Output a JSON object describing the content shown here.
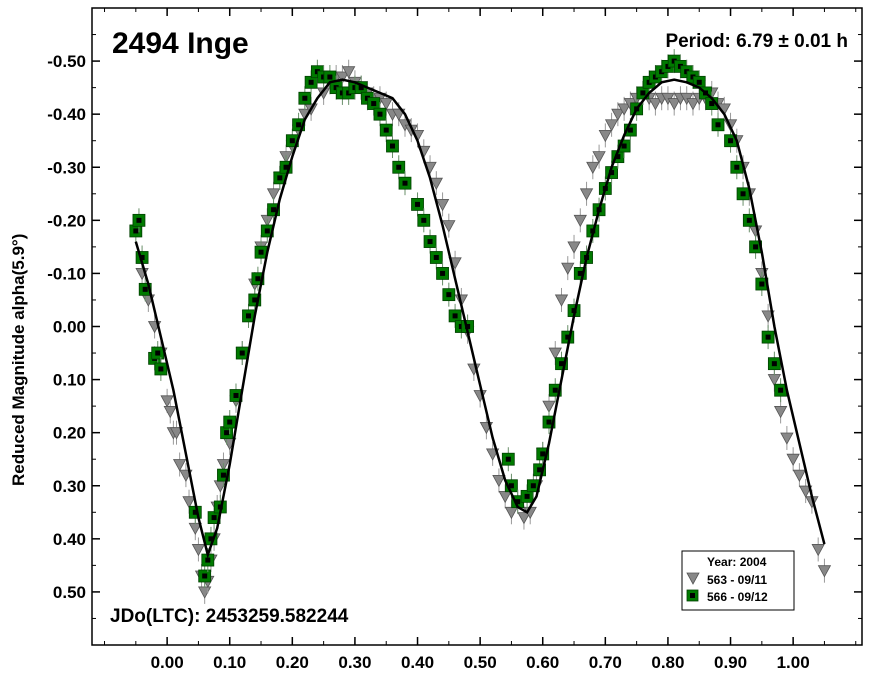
{
  "chart_data": {
    "type": "scatter",
    "title": "2494 Inge",
    "period_label": "Period: 6.79 ± 0.01 h",
    "jdo_label": "JDo(LTC): 2453259.582244",
    "ylabel": "Reduced Magnitude alpha(5.9°)",
    "xlabel": "",
    "xlim": [
      -0.12,
      1.11
    ],
    "ylim": [
      0.6,
      -0.6
    ],
    "x_ticks": [
      "0.00",
      "0.10",
      "0.20",
      "0.30",
      "0.40",
      "0.50",
      "0.60",
      "0.70",
      "0.80",
      "0.90",
      "1.00"
    ],
    "x_tick_values": [
      0.0,
      0.1,
      0.2,
      0.3,
      0.4,
      0.5,
      0.6,
      0.7,
      0.8,
      0.9,
      1.0
    ],
    "y_ticks": [
      "-0.50",
      "-0.40",
      "-0.30",
      "-0.20",
      "-0.10",
      "0.00",
      "0.10",
      "0.20",
      "0.30",
      "0.40",
      "0.50"
    ],
    "y_tick_values": [
      -0.5,
      -0.4,
      -0.3,
      -0.2,
      -0.1,
      0.0,
      0.1,
      0.2,
      0.3,
      0.4,
      0.5
    ],
    "legend": {
      "title": "Year: 2004",
      "placement": "bottom-right",
      "entries": [
        {
          "label": "563 - 09/11",
          "marker": "gray-triangle"
        },
        {
          "label": "566 - 09/12",
          "marker": "green-square"
        }
      ]
    },
    "colors": {
      "green": "#007a00",
      "gray": "#888888",
      "curve": "#000000"
    },
    "fit_curve": {
      "x": [
        -0.05,
        -0.03,
        -0.01,
        0.01,
        0.03,
        0.05,
        0.065,
        0.08,
        0.1,
        0.12,
        0.14,
        0.16,
        0.18,
        0.2,
        0.22,
        0.24,
        0.26,
        0.28,
        0.3,
        0.32,
        0.34,
        0.36,
        0.38,
        0.4,
        0.42,
        0.44,
        0.46,
        0.48,
        0.5,
        0.52,
        0.54,
        0.56,
        0.575,
        0.59,
        0.61,
        0.63,
        0.65,
        0.67,
        0.69,
        0.71,
        0.73,
        0.75,
        0.77,
        0.79,
        0.81,
        0.83,
        0.85,
        0.87,
        0.89,
        0.91,
        0.93,
        0.95,
        0.97,
        0.99,
        1.01,
        1.03,
        1.05
      ],
      "y": [
        -0.16,
        -0.08,
        0.02,
        0.12,
        0.24,
        0.36,
        0.43,
        0.38,
        0.26,
        0.12,
        -0.02,
        -0.14,
        -0.24,
        -0.32,
        -0.39,
        -0.43,
        -0.46,
        -0.465,
        -0.46,
        -0.45,
        -0.44,
        -0.43,
        -0.4,
        -0.35,
        -0.28,
        -0.19,
        -0.09,
        0.01,
        0.11,
        0.21,
        0.29,
        0.34,
        0.35,
        0.32,
        0.22,
        0.1,
        -0.02,
        -0.13,
        -0.22,
        -0.3,
        -0.36,
        -0.41,
        -0.44,
        -0.46,
        -0.465,
        -0.46,
        -0.45,
        -0.43,
        -0.4,
        -0.35,
        -0.26,
        -0.14,
        0.0,
        0.12,
        0.22,
        0.32,
        0.41
      ]
    },
    "series": [
      {
        "name": "563 - 09/11",
        "marker": "triangle",
        "x": [
          -0.04,
          -0.03,
          -0.02,
          -0.01,
          0.0,
          0.005,
          0.01,
          0.015,
          0.02,
          0.03,
          0.035,
          0.045,
          0.05,
          0.055,
          0.06,
          0.065,
          0.07,
          0.075,
          0.08,
          0.085,
          0.09,
          0.1,
          0.11,
          0.12,
          0.13,
          0.14,
          0.15,
          0.16,
          0.17,
          0.18,
          0.19,
          0.2,
          0.21,
          0.22,
          0.23,
          0.25,
          0.26,
          0.27,
          0.28,
          0.29,
          0.3,
          0.31,
          0.32,
          0.33,
          0.34,
          0.35,
          0.36,
          0.37,
          0.38,
          0.39,
          0.4,
          0.41,
          0.42,
          0.43,
          0.44,
          0.45,
          0.46,
          0.47,
          0.48,
          0.49,
          0.5,
          0.51,
          0.52,
          0.53,
          0.54,
          0.55,
          0.56,
          0.57,
          0.58,
          0.59,
          0.6,
          0.61,
          0.62,
          0.63,
          0.64,
          0.65,
          0.66,
          0.67,
          0.68,
          0.69,
          0.7,
          0.71,
          0.72,
          0.73,
          0.74,
          0.75,
          0.76,
          0.77,
          0.78,
          0.79,
          0.8,
          0.81,
          0.82,
          0.83,
          0.84,
          0.85,
          0.86,
          0.87,
          0.88,
          0.89,
          0.9,
          0.91,
          0.92,
          0.93,
          0.94,
          0.95,
          0.96,
          0.97,
          0.98,
          0.99,
          1.0,
          1.01,
          1.02,
          1.03,
          1.04,
          1.05
        ],
        "y": [
          -0.1,
          -0.05,
          0.0,
          0.05,
          0.14,
          0.16,
          0.2,
          0.2,
          0.26,
          0.28,
          0.33,
          0.38,
          0.42,
          0.47,
          0.5,
          0.48,
          0.44,
          0.4,
          0.34,
          0.3,
          0.26,
          0.22,
          0.14,
          0.05,
          -0.02,
          -0.08,
          -0.15,
          -0.2,
          -0.25,
          -0.28,
          -0.32,
          -0.34,
          -0.37,
          -0.4,
          -0.41,
          -0.44,
          -0.46,
          -0.47,
          -0.47,
          -0.48,
          -0.46,
          -0.45,
          -0.44,
          -0.43,
          -0.43,
          -0.42,
          -0.4,
          -0.4,
          -0.38,
          -0.37,
          -0.36,
          -0.33,
          -0.3,
          -0.27,
          -0.23,
          -0.19,
          -0.12,
          -0.05,
          0.01,
          0.08,
          0.13,
          0.19,
          0.24,
          0.29,
          0.32,
          0.35,
          0.33,
          0.36,
          0.35,
          0.3,
          0.24,
          0.15,
          0.05,
          -0.05,
          -0.11,
          -0.15,
          -0.2,
          -0.25,
          -0.3,
          -0.32,
          -0.36,
          -0.38,
          -0.4,
          -0.41,
          -0.42,
          -0.43,
          -0.44,
          -0.43,
          -0.42,
          -0.43,
          -0.43,
          -0.42,
          -0.43,
          -0.43,
          -0.42,
          -0.43,
          -0.43,
          -0.44,
          -0.42,
          -0.41,
          -0.38,
          -0.35,
          -0.3,
          -0.25,
          -0.18,
          -0.1,
          -0.02,
          0.1,
          0.16,
          0.21,
          0.25,
          0.28,
          0.31,
          0.33,
          0.42,
          0.46
        ]
      },
      {
        "name": "566 - 09/12",
        "marker": "square",
        "x": [
          -0.05,
          -0.045,
          -0.04,
          -0.035,
          -0.02,
          -0.015,
          -0.01,
          0.045,
          0.06,
          0.065,
          0.07,
          0.075,
          0.085,
          0.09,
          0.095,
          0.1,
          0.11,
          0.12,
          0.13,
          0.14,
          0.145,
          0.15,
          0.16,
          0.17,
          0.18,
          0.19,
          0.2,
          0.21,
          0.22,
          0.23,
          0.24,
          0.25,
          0.26,
          0.27,
          0.28,
          0.29,
          0.3,
          0.31,
          0.32,
          0.33,
          0.34,
          0.35,
          0.36,
          0.37,
          0.38,
          0.4,
          0.41,
          0.42,
          0.43,
          0.44,
          0.45,
          0.46,
          0.47,
          0.48,
          0.545,
          0.55,
          0.56,
          0.575,
          0.585,
          0.595,
          0.6,
          0.61,
          0.62,
          0.63,
          0.64,
          0.65,
          0.66,
          0.67,
          0.68,
          0.69,
          0.7,
          0.71,
          0.72,
          0.73,
          0.74,
          0.75,
          0.76,
          0.77,
          0.78,
          0.79,
          0.8,
          0.81,
          0.82,
          0.83,
          0.84,
          0.85,
          0.86,
          0.87,
          0.88,
          0.9,
          0.91,
          0.92,
          0.93,
          0.94,
          0.95,
          0.96,
          0.97,
          0.98
        ],
        "y": [
          -0.18,
          -0.2,
          -0.13,
          -0.07,
          0.06,
          0.05,
          0.08,
          0.35,
          0.47,
          0.44,
          0.4,
          0.36,
          0.34,
          0.28,
          0.2,
          0.18,
          0.13,
          0.05,
          -0.02,
          -0.05,
          -0.09,
          -0.14,
          -0.18,
          -0.22,
          -0.28,
          -0.3,
          -0.35,
          -0.38,
          -0.43,
          -0.46,
          -0.48,
          -0.47,
          -0.47,
          -0.45,
          -0.44,
          -0.44,
          -0.45,
          -0.45,
          -0.43,
          -0.42,
          -0.4,
          -0.37,
          -0.34,
          -0.3,
          -0.27,
          -0.23,
          -0.2,
          -0.16,
          -0.13,
          -0.1,
          -0.06,
          -0.02,
          0.0,
          0.0,
          0.25,
          0.3,
          0.33,
          0.32,
          0.3,
          0.27,
          0.24,
          0.18,
          0.12,
          0.07,
          0.02,
          -0.03,
          -0.1,
          -0.13,
          -0.18,
          -0.22,
          -0.26,
          -0.29,
          -0.32,
          -0.34,
          -0.37,
          -0.41,
          -0.44,
          -0.46,
          -0.47,
          -0.48,
          -0.49,
          -0.5,
          -0.49,
          -0.48,
          -0.47,
          -0.46,
          -0.44,
          -0.42,
          -0.38,
          -0.35,
          -0.3,
          -0.25,
          -0.2,
          -0.15,
          -0.08,
          0.02,
          0.07,
          0.12
        ]
      }
    ]
  }
}
